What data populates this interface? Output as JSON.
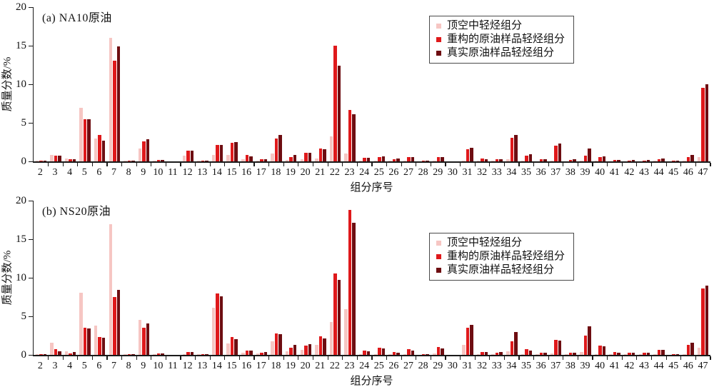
{
  "figure": {
    "xlabel": "组分序号",
    "ylabel": "质量分数/%"
  },
  "colors": {
    "headspace": "#f6c6c3",
    "reconstructed": "#df191b",
    "real": "#6e0d11",
    "axis": "#1a1a1a"
  },
  "chart_data": [
    {
      "type": "bar",
      "title": "(a) NA10原油",
      "xlabel": "组分序号",
      "ylabel": "质量分数/%",
      "ylim": [
        0,
        20
      ],
      "yticks": [
        0,
        5,
        10,
        15,
        20
      ],
      "grid": false,
      "legend_position": "upper-center-right",
      "categories": [
        2,
        3,
        4,
        5,
        6,
        7,
        8,
        9,
        10,
        11,
        12,
        13,
        14,
        15,
        16,
        17,
        18,
        19,
        20,
        21,
        22,
        23,
        24,
        25,
        26,
        27,
        28,
        29,
        30,
        31,
        32,
        33,
        34,
        35,
        36,
        37,
        38,
        39,
        40,
        41,
        42,
        43,
        44,
        45,
        46,
        47
      ],
      "series": [
        {
          "name": "顶空中轻烃组分",
          "color": "#f6c6c3",
          "values": [
            0.05,
            0.85,
            0.4,
            6.9,
            3.0,
            16.0,
            0.05,
            1.7,
            0.1,
            0,
            0.7,
            0.05,
            0.8,
            0.8,
            0.25,
            0.1,
            1.0,
            0.15,
            0.3,
            0.4,
            3.2,
            1.0,
            0.05,
            0.1,
            0.05,
            0.05,
            0,
            0.1,
            0,
            0.1,
            0.05,
            0.1,
            0.25,
            0.05,
            0,
            0.05,
            0,
            0.1,
            0.05,
            0,
            0,
            0,
            0.05,
            0,
            0.1,
            0.55
          ]
        },
        {
          "name": "重构的原油样品轻烃组分",
          "color": "#df191b",
          "values": [
            0.05,
            0.75,
            0.25,
            5.5,
            3.4,
            13.1,
            0.1,
            2.6,
            0.2,
            0,
            1.4,
            0.05,
            2.1,
            2.4,
            0.85,
            0.25,
            3.0,
            0.6,
            1.1,
            1.65,
            15.0,
            6.7,
            0.45,
            0.55,
            0.3,
            0.55,
            0.05,
            0.6,
            0,
            1.6,
            0.35,
            0.25,
            3.1,
            0.75,
            0.25,
            2.0,
            0.2,
            0.7,
            0.6,
            0.15,
            0.1,
            0.1,
            0.3,
            0.05,
            0.55,
            9.5
          ]
        },
        {
          "name": "真实原油样品轻烃组分",
          "color": "#6e0d11",
          "values": [
            0.05,
            0.7,
            0.3,
            5.5,
            2.7,
            14.9,
            0.1,
            2.85,
            0.2,
            0,
            1.4,
            0.05,
            2.1,
            2.5,
            0.65,
            0.3,
            3.4,
            0.8,
            1.1,
            1.6,
            12.4,
            6.1,
            0.45,
            0.65,
            0.35,
            0.6,
            0.1,
            0.6,
            0,
            1.75,
            0.3,
            0.3,
            3.4,
            0.95,
            0.3,
            2.3,
            0.3,
            1.7,
            0.65,
            0.2,
            0.15,
            0.15,
            0.35,
            0.05,
            0.85,
            10.0
          ]
        }
      ]
    },
    {
      "type": "bar",
      "title": "(b) NS20原油",
      "xlabel": "组分序号",
      "ylabel": "质量分数/%",
      "ylim": [
        0,
        20
      ],
      "yticks": [
        0,
        5,
        10,
        15,
        20
      ],
      "grid": false,
      "legend_position": "upper-center-right",
      "categories": [
        2,
        3,
        4,
        5,
        6,
        7,
        8,
        9,
        10,
        11,
        12,
        13,
        14,
        15,
        16,
        17,
        18,
        19,
        20,
        21,
        22,
        23,
        24,
        25,
        26,
        27,
        28,
        29,
        30,
        31,
        32,
        33,
        34,
        35,
        36,
        37,
        38,
        39,
        40,
        41,
        42,
        43,
        44,
        45,
        46,
        47
      ],
      "series": [
        {
          "name": "顶空中轻烃组分",
          "color": "#f6c6c3",
          "values": [
            0.1,
            1.6,
            0.5,
            8.1,
            3.8,
            16.9,
            0.05,
            4.5,
            0.1,
            0,
            0.05,
            0.05,
            6.1,
            1.45,
            0.25,
            0.2,
            1.8,
            0.5,
            0.65,
            1.25,
            4.3,
            5.9,
            0.05,
            0.1,
            0.05,
            0.05,
            0,
            0.15,
            0,
            1.3,
            0.05,
            0.1,
            0.5,
            0.1,
            0.05,
            0.2,
            0.05,
            0.35,
            0.1,
            0.05,
            0.05,
            0.05,
            0.05,
            0,
            0.1,
            0.9
          ]
        },
        {
          "name": "重构的原油样品轻烃组分",
          "color": "#df191b",
          "values": [
            0.05,
            0.7,
            0.2,
            3.5,
            2.3,
            7.5,
            0.1,
            3.55,
            0.2,
            0,
            0.35,
            0.05,
            8.0,
            2.3,
            0.55,
            0.3,
            2.8,
            0.9,
            1.2,
            2.45,
            10.6,
            18.8,
            0.6,
            0.95,
            0.35,
            0.75,
            0.05,
            1.0,
            0,
            3.5,
            0.35,
            0.3,
            1.8,
            0.75,
            0.25,
            1.9,
            0.25,
            2.5,
            1.2,
            0.35,
            0.25,
            0.3,
            0.65,
            0.05,
            1.3,
            8.6
          ]
        },
        {
          "name": "真实原油样品轻烃组分",
          "color": "#6e0d11",
          "values": [
            0.05,
            0.5,
            0.35,
            3.45,
            2.25,
            8.4,
            0.1,
            4.05,
            0.2,
            0,
            0.35,
            0.05,
            7.55,
            2.0,
            0.6,
            0.4,
            2.7,
            1.25,
            1.4,
            2.1,
            9.7,
            17.1,
            0.45,
            0.85,
            0.3,
            0.6,
            0.1,
            0.85,
            0,
            3.9,
            0.35,
            0.35,
            3.0,
            0.6,
            0.25,
            1.85,
            0.3,
            3.7,
            1.1,
            0.3,
            0.3,
            0.25,
            0.65,
            0.1,
            1.6,
            9.0
          ]
        }
      ]
    }
  ]
}
